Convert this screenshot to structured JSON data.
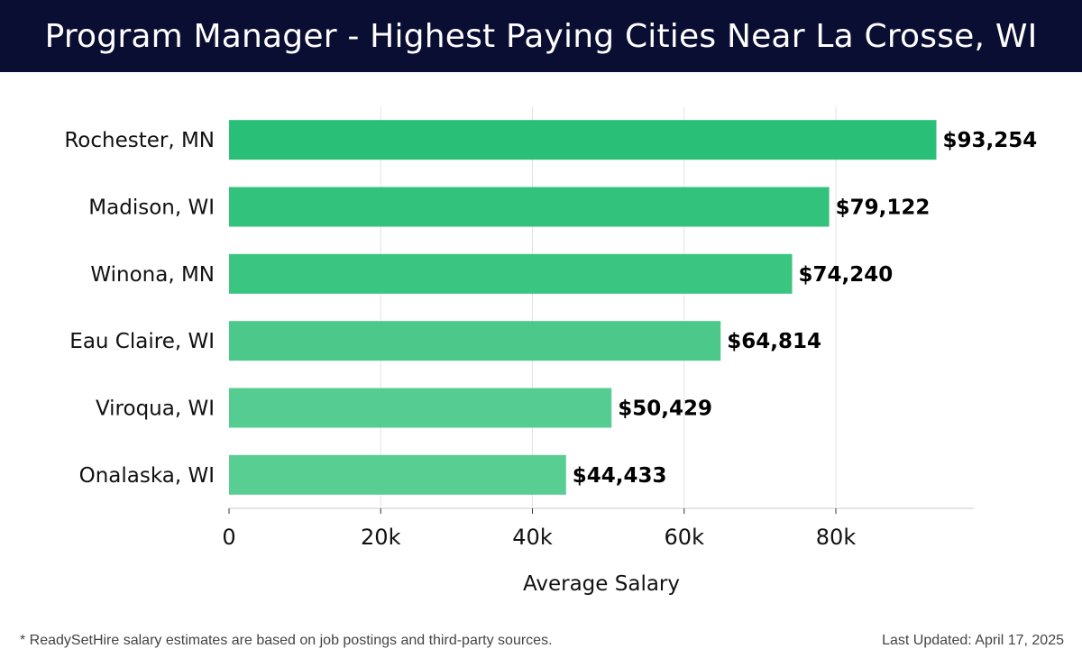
{
  "header": {
    "title": "Program Manager - Highest Paying Cities Near La Crosse, WI"
  },
  "chart_data": {
    "type": "bar",
    "orientation": "horizontal",
    "categories": [
      "Rochester, MN",
      "Madison, WI",
      "Winona, MN",
      "Eau Claire, WI",
      "Viroqua, WI",
      "Onalaska, WI"
    ],
    "values": [
      93254,
      79122,
      74240,
      64814,
      50429,
      44433
    ],
    "value_labels": [
      "$93,254",
      "$79,122",
      "$74,240",
      "$64,814",
      "$50,429",
      "$44,433"
    ],
    "bar_colors": [
      "#2abf76",
      "#33c27c",
      "#3ac581",
      "#4cc98a",
      "#55cc91",
      "#58ce93"
    ],
    "xlabel": "Average Salary",
    "xlim": [
      0,
      98000
    ],
    "xticks": [
      0,
      20000,
      40000,
      60000,
      80000
    ],
    "xtick_labels": [
      "0",
      "20k",
      "40k",
      "60k",
      "80k"
    ],
    "grid": true
  },
  "footer": {
    "note": "* ReadySetHire salary estimates are based on job postings and third-party sources.",
    "updated": "Last Updated: April 17, 2025"
  }
}
